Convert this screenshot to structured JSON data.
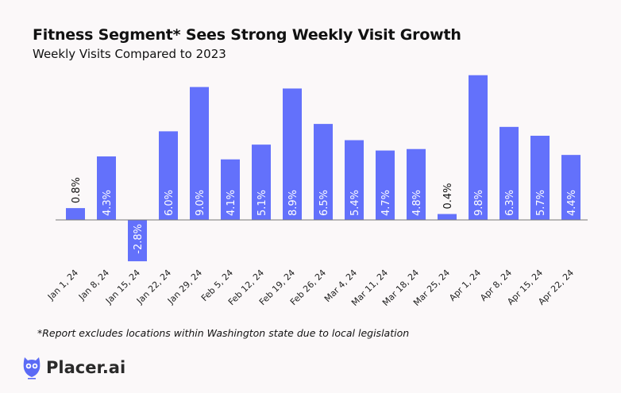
{
  "title": "Fitness Segment* Sees Strong Weekly Visit Growth",
  "subtitle": "Weekly Visits Compared to 2023",
  "footnote": "*Report excludes locations within Washington state due to local legislation",
  "logo": {
    "text": "Placer.ai",
    "color": "#5b6af5"
  },
  "chart_data": {
    "type": "bar",
    "title": "Fitness Segment* Sees Strong Weekly Visit Growth",
    "subtitle": "Weekly Visits Compared to 2023",
    "categories": [
      "Jan 1, 24",
      "Jan 8, 24",
      "Jan 15, 24",
      "Jan 22, 24",
      "Jan 29, 24",
      "Feb 5, 24",
      "Feb 12, 24",
      "Feb 19, 24",
      "Feb 26, 24",
      "Mar 4, 24",
      "Mar 11, 24",
      "Mar 18, 24",
      "Mar 25, 24",
      "Apr 1, 24",
      "Apr 8, 24",
      "Apr 15, 24",
      "Apr 22, 24"
    ],
    "values": [
      0.8,
      4.3,
      -2.8,
      6.0,
      9.0,
      4.1,
      5.1,
      8.9,
      6.5,
      5.4,
      4.7,
      4.8,
      0.4,
      9.8,
      6.3,
      5.7,
      4.4
    ],
    "labels": [
      "0.8%",
      "4.3%",
      "-2.8%",
      "6.0%",
      "9.0%",
      "4.1%",
      "5.1%",
      "8.9%",
      "6.5%",
      "5.4%",
      "4.7%",
      "4.8%",
      "0.4%",
      "9.8%",
      "6.3%",
      "5.7%",
      "4.4%"
    ],
    "unit": "%",
    "bar_color": "#6371fb",
    "grid": false,
    "legend": "none"
  }
}
